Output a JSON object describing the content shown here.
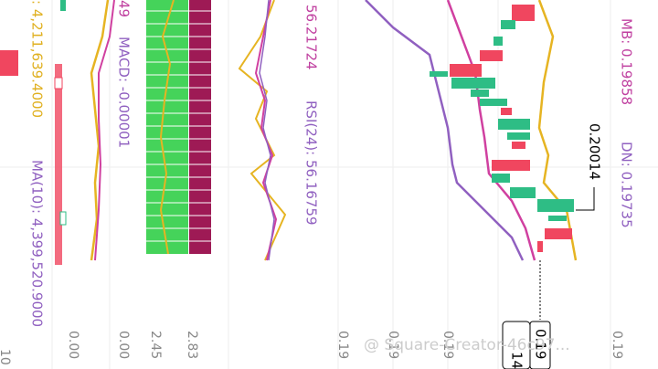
{
  "labels": {
    "mb": "MB: 0.19858",
    "dn": "DN: 0.19735",
    "price_marker": "0.20014",
    "rsi_short": "56.21724",
    "rsi": "RSI(24): 56.16759",
    "macd_short": "49",
    "macd": "MACD: -0.00001",
    "vol": ": 4,211,639.4000",
    "ma10": "MA(10): 4,399,520.9000"
  },
  "axis_labels": [
    "10",
    "0.00",
    "0.00",
    "2.45",
    "2.83",
    "0.19",
    "0.19",
    "0.19",
    "0.19"
  ],
  "cursor": {
    "time": "14",
    "price": "0.19"
  },
  "watermark": "@ Square-Creator-46c97..."
}
